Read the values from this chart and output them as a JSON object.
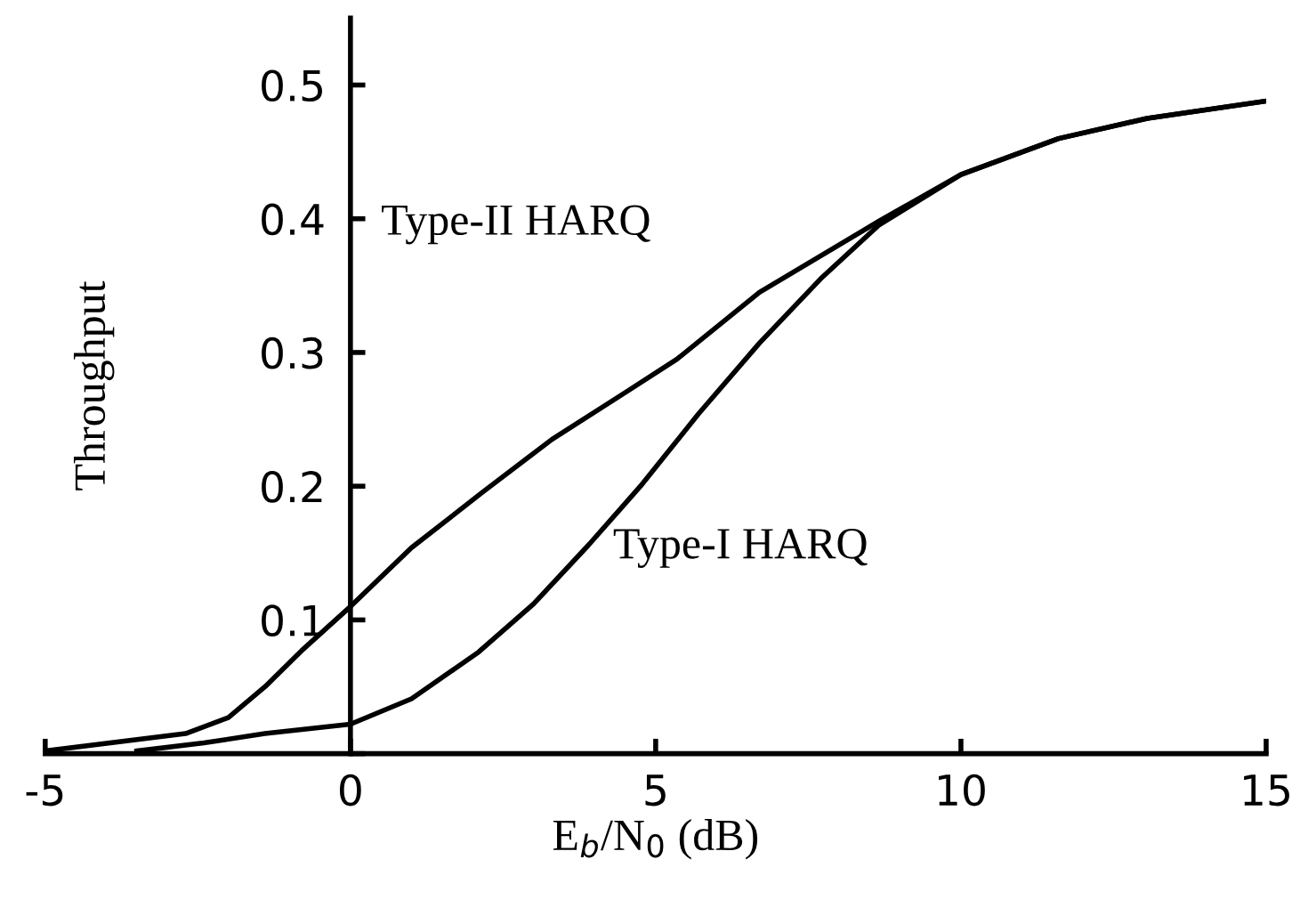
{
  "chart_data": {
    "type": "line",
    "xlabel": "E$_{b}$/N$_{0}$ (dB)",
    "ylabel": "Throughput",
    "xlim": [
      -5,
      15
    ],
    "ylim": [
      0,
      0.55
    ],
    "xticks": [
      -5,
      0,
      5,
      10,
      15
    ],
    "yticks": [
      {
        "value": 0,
        "label": null
      },
      0.1,
      0.2,
      0.3,
      0.4,
      0.5
    ],
    "grid": false,
    "legend": false,
    "marker": "none",
    "line_style": "solid",
    "annotations": [
      "Type-II HARQ",
      "Type-I HARQ"
    ],
    "series": [
      {
        "color": "#000000",
        "x": [
          -5,
          -2.7,
          -2,
          -1.4,
          -0.8,
          0,
          1,
          2.15,
          3.3,
          4.5,
          5.35,
          6.7,
          8.65,
          10,
          11.6,
          13.05,
          15
        ],
        "values": [
          0.002,
          0.015,
          0.027,
          0.05,
          0.077,
          0.11,
          0.154,
          0.195,
          0.235,
          0.27,
          0.295,
          0.345,
          0.398,
          0.433,
          0.46,
          0.475,
          0.488
        ]
      },
      {
        "color": "#000000",
        "x": [
          -3.5,
          -2.4,
          -1.4,
          0,
          1,
          2.1,
          3.0,
          3.9,
          4.5,
          4.75,
          5.7,
          6.7,
          7.7,
          8.65,
          10,
          11.6,
          13.05,
          15
        ],
        "values": [
          0.002,
          0.008,
          0.015,
          0.022,
          0.041,
          0.076,
          0.112,
          0.156,
          0.187,
          0.2,
          0.254,
          0.307,
          0.355,
          0.395,
          0.433,
          0.46,
          0.475,
          0.488
        ]
      }
    ]
  }
}
